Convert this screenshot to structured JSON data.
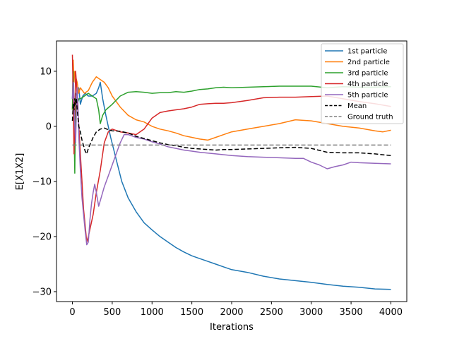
{
  "chart_data": {
    "type": "line",
    "title": "",
    "xlabel": "Iterations",
    "ylabel": "E[X1X2]",
    "xlim": [
      -200,
      4200
    ],
    "ylim": [
      -31.8,
      15.5
    ],
    "xticks": [
      0,
      500,
      1000,
      1500,
      2000,
      2500,
      3000,
      3500,
      4000
    ],
    "yticks": [
      10,
      0,
      -10,
      -20,
      -30
    ],
    "ytick_labels": [
      "10",
      "0",
      "−10",
      "−20",
      "−30"
    ],
    "grid": false,
    "legend_position": "top-right",
    "series": [
      {
        "name": "1st particle",
        "color": "#1f77b4",
        "dash": "",
        "points": [
          [
            0,
            5
          ],
          [
            10,
            12
          ],
          [
            20,
            2
          ],
          [
            30,
            -3
          ],
          [
            40,
            6
          ],
          [
            60,
            5.5
          ],
          [
            80,
            7
          ],
          [
            100,
            4
          ],
          [
            130,
            5.5
          ],
          [
            160,
            6
          ],
          [
            200,
            5.5
          ],
          [
            250,
            5.5
          ],
          [
            300,
            6
          ],
          [
            330,
            7
          ],
          [
            350,
            8
          ],
          [
            380,
            5
          ],
          [
            420,
            2
          ],
          [
            480,
            -2
          ],
          [
            550,
            -6
          ],
          [
            620,
            -10
          ],
          [
            700,
            -13
          ],
          [
            800,
            -15.5
          ],
          [
            900,
            -17.5
          ],
          [
            1000,
            -18.8
          ],
          [
            1100,
            -20
          ],
          [
            1200,
            -21
          ],
          [
            1300,
            -22
          ],
          [
            1400,
            -22.8
          ],
          [
            1500,
            -23.5
          ],
          [
            1600,
            -24
          ],
          [
            1700,
            -24.5
          ],
          [
            1800,
            -25
          ],
          [
            1900,
            -25.5
          ],
          [
            2000,
            -26
          ],
          [
            2200,
            -26.5
          ],
          [
            2400,
            -27.2
          ],
          [
            2600,
            -27.7
          ],
          [
            2800,
            -28
          ],
          [
            3000,
            -28.3
          ],
          [
            3200,
            -28.7
          ],
          [
            3400,
            -29
          ],
          [
            3600,
            -29.2
          ],
          [
            3800,
            -29.5
          ],
          [
            4000,
            -29.6
          ]
        ]
      },
      {
        "name": "2nd particle",
        "color": "#ff7f0e",
        "dash": "",
        "points": [
          [
            0,
            3
          ],
          [
            10,
            12
          ],
          [
            20,
            8
          ],
          [
            30,
            10
          ],
          [
            40,
            9
          ],
          [
            60,
            8
          ],
          [
            80,
            6
          ],
          [
            100,
            7
          ],
          [
            150,
            6
          ],
          [
            200,
            6.5
          ],
          [
            250,
            8
          ],
          [
            300,
            9
          ],
          [
            350,
            8.5
          ],
          [
            400,
            8
          ],
          [
            450,
            7
          ],
          [
            500,
            5.5
          ],
          [
            600,
            3.5
          ],
          [
            700,
            2
          ],
          [
            800,
            1.2
          ],
          [
            900,
            0.8
          ],
          [
            1000,
            0
          ],
          [
            1100,
            -0.5
          ],
          [
            1200,
            -0.8
          ],
          [
            1300,
            -1.2
          ],
          [
            1400,
            -1.7
          ],
          [
            1500,
            -2
          ],
          [
            1600,
            -2.3
          ],
          [
            1700,
            -2.5
          ],
          [
            1800,
            -2
          ],
          [
            1900,
            -1.5
          ],
          [
            2000,
            -1
          ],
          [
            2200,
            -0.5
          ],
          [
            2400,
            0
          ],
          [
            2600,
            0.5
          ],
          [
            2800,
            1.2
          ],
          [
            3000,
            1
          ],
          [
            3200,
            0.5
          ],
          [
            3400,
            0
          ],
          [
            3600,
            -0.3
          ],
          [
            3800,
            -0.8
          ],
          [
            3900,
            -1
          ],
          [
            4000,
            -0.7
          ]
        ]
      },
      {
        "name": "3rd particle",
        "color": "#2ca02c",
        "dash": "",
        "points": [
          [
            0,
            3
          ],
          [
            10,
            10
          ],
          [
            20,
            0
          ],
          [
            30,
            -8.5
          ],
          [
            40,
            5
          ],
          [
            60,
            4
          ],
          [
            80,
            5
          ],
          [
            100,
            5
          ],
          [
            150,
            5.5
          ],
          [
            200,
            6
          ],
          [
            250,
            5.5
          ],
          [
            300,
            5
          ],
          [
            330,
            3
          ],
          [
            350,
            0.5
          ],
          [
            380,
            2
          ],
          [
            420,
            3
          ],
          [
            500,
            4
          ],
          [
            600,
            5.5
          ],
          [
            700,
            6.2
          ],
          [
            800,
            6.3
          ],
          [
            900,
            6.2
          ],
          [
            1000,
            6
          ],
          [
            1100,
            6.1
          ],
          [
            1200,
            6.1
          ],
          [
            1300,
            6.3
          ],
          [
            1400,
            6.2
          ],
          [
            1500,
            6.4
          ],
          [
            1600,
            6.7
          ],
          [
            1700,
            6.8
          ],
          [
            1800,
            7
          ],
          [
            1900,
            7.1
          ],
          [
            2000,
            7
          ],
          [
            2200,
            7.1
          ],
          [
            2400,
            7.2
          ],
          [
            2600,
            7.3
          ],
          [
            2800,
            7.3
          ],
          [
            3000,
            7.3
          ],
          [
            3200,
            7
          ],
          [
            3400,
            7.2
          ],
          [
            3600,
            7.1
          ],
          [
            3800,
            7.1
          ],
          [
            4000,
            7.2
          ]
        ]
      },
      {
        "name": "4th particle",
        "color": "#d62728",
        "dash": "",
        "points": [
          [
            0,
            13
          ],
          [
            10,
            5
          ],
          [
            20,
            -5
          ],
          [
            30,
            2
          ],
          [
            40,
            10
          ],
          [
            50,
            8
          ],
          [
            60,
            5
          ],
          [
            80,
            0
          ],
          [
            100,
            -5
          ],
          [
            120,
            -10
          ],
          [
            140,
            -15
          ],
          [
            160,
            -18
          ],
          [
            180,
            -21
          ],
          [
            200,
            -20
          ],
          [
            230,
            -18
          ],
          [
            260,
            -16
          ],
          [
            300,
            -12
          ],
          [
            350,
            -8
          ],
          [
            400,
            -3
          ],
          [
            450,
            -1
          ],
          [
            500,
            -0.5
          ],
          [
            600,
            -1
          ],
          [
            700,
            -1.2
          ],
          [
            800,
            -1.5
          ],
          [
            900,
            -0.5
          ],
          [
            1000,
            1.5
          ],
          [
            1100,
            2.5
          ],
          [
            1200,
            2.8
          ],
          [
            1300,
            3
          ],
          [
            1400,
            3.2
          ],
          [
            1500,
            3.5
          ],
          [
            1600,
            4
          ],
          [
            1700,
            4.1
          ],
          [
            1800,
            4.2
          ],
          [
            1900,
            4.2
          ],
          [
            2000,
            4.3
          ],
          [
            2200,
            4.7
          ],
          [
            2400,
            5.2
          ],
          [
            2600,
            5.3
          ],
          [
            2800,
            5.3
          ],
          [
            3000,
            5.4
          ],
          [
            3200,
            5.5
          ],
          [
            3400,
            5
          ],
          [
            3600,
            4.5
          ],
          [
            3800,
            4.1
          ],
          [
            4000,
            3.6
          ]
        ]
      },
      {
        "name": "5th particle",
        "color": "#9467bd",
        "dash": "",
        "points": [
          [
            0,
            5
          ],
          [
            10,
            8
          ],
          [
            20,
            4
          ],
          [
            30,
            0
          ],
          [
            40,
            -3
          ],
          [
            50,
            3
          ],
          [
            60,
            7
          ],
          [
            70,
            4
          ],
          [
            80,
            -2
          ],
          [
            100,
            -8
          ],
          [
            120,
            -13
          ],
          [
            140,
            -16
          ],
          [
            160,
            -19
          ],
          [
            180,
            -21.5
          ],
          [
            200,
            -21
          ],
          [
            220,
            -17
          ],
          [
            240,
            -14
          ],
          [
            260,
            -12
          ],
          [
            280,
            -10.5
          ],
          [
            300,
            -12
          ],
          [
            330,
            -14.5
          ],
          [
            360,
            -13
          ],
          [
            400,
            -11
          ],
          [
            450,
            -9
          ],
          [
            500,
            -7
          ],
          [
            550,
            -5
          ],
          [
            600,
            -3
          ],
          [
            650,
            -1.5
          ],
          [
            700,
            -1.5
          ],
          [
            800,
            -2
          ],
          [
            900,
            -2.3
          ],
          [
            1000,
            -2.8
          ],
          [
            1100,
            -3.2
          ],
          [
            1200,
            -3.7
          ],
          [
            1300,
            -4
          ],
          [
            1400,
            -4.3
          ],
          [
            1500,
            -4.5
          ],
          [
            1600,
            -4.7
          ],
          [
            1800,
            -5
          ],
          [
            2000,
            -5.3
          ],
          [
            2200,
            -5.5
          ],
          [
            2400,
            -5.6
          ],
          [
            2600,
            -5.7
          ],
          [
            2800,
            -5.8
          ],
          [
            2900,
            -5.8
          ],
          [
            3000,
            -6.5
          ],
          [
            3100,
            -7
          ],
          [
            3200,
            -7.7
          ],
          [
            3300,
            -7.3
          ],
          [
            3400,
            -7
          ],
          [
            3500,
            -6.5
          ],
          [
            3600,
            -6.6
          ],
          [
            3800,
            -6.7
          ],
          [
            4000,
            -6.8
          ]
        ]
      },
      {
        "name": "Mean",
        "color": "#000000",
        "dash": "6,3",
        "points": [
          [
            0,
            1
          ],
          [
            10,
            4
          ],
          [
            20,
            3
          ],
          [
            30,
            5
          ],
          [
            40,
            4
          ],
          [
            50,
            5
          ],
          [
            60,
            3
          ],
          [
            80,
            0
          ],
          [
            100,
            -1
          ],
          [
            120,
            -2.5
          ],
          [
            140,
            -3.5
          ],
          [
            160,
            -4.5
          ],
          [
            180,
            -5
          ],
          [
            200,
            -4
          ],
          [
            230,
            -3
          ],
          [
            260,
            -2
          ],
          [
            300,
            -1
          ],
          [
            350,
            -0.5
          ],
          [
            400,
            -0.3
          ],
          [
            450,
            -0.6
          ],
          [
            500,
            -0.8
          ],
          [
            600,
            -0.9
          ],
          [
            700,
            -1.2
          ],
          [
            800,
            -1.8
          ],
          [
            900,
            -2.2
          ],
          [
            1000,
            -2.6
          ],
          [
            1100,
            -3
          ],
          [
            1200,
            -3.3
          ],
          [
            1300,
            -3.5
          ],
          [
            1400,
            -3.8
          ],
          [
            1500,
            -4
          ],
          [
            1600,
            -4.1
          ],
          [
            1700,
            -4.2
          ],
          [
            1800,
            -4.3
          ],
          [
            1900,
            -4.2
          ],
          [
            2000,
            -4.2
          ],
          [
            2200,
            -4.1
          ],
          [
            2400,
            -4
          ],
          [
            2600,
            -3.9
          ],
          [
            2800,
            -3.8
          ],
          [
            3000,
            -4
          ],
          [
            3200,
            -4.7
          ],
          [
            3400,
            -4.8
          ],
          [
            3600,
            -4.8
          ],
          [
            3800,
            -5
          ],
          [
            4000,
            -5.3
          ]
        ]
      },
      {
        "name": "Ground truth",
        "color": "#808080",
        "dash": "6,3",
        "points": [
          [
            0,
            -3.4
          ],
          [
            4000,
            -3.4
          ]
        ]
      }
    ]
  }
}
